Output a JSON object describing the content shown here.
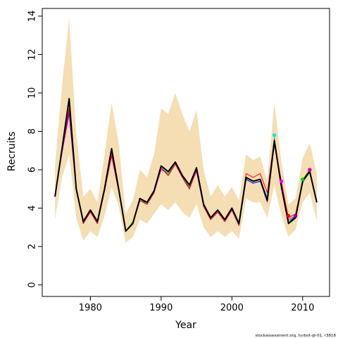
{
  "chart_data": {
    "type": "line",
    "xlabel": "Year",
    "ylabel": "Recruits",
    "xlim": [
      1973.2,
      2013.8
    ],
    "ylim": [
      -0.6,
      14.4
    ],
    "xticks": [
      1980,
      1990,
      2000,
      2010
    ],
    "yticks": [
      0,
      2,
      4,
      6,
      8,
      10,
      12,
      14
    ],
    "footnote": "stockassessment.org, turbot-qt-01, r3818",
    "band_color": "#F5DEB3",
    "x": [
      1975,
      1976,
      1977,
      1978,
      1979,
      1980,
      1981,
      1982,
      1983,
      1984,
      1985,
      1986,
      1987,
      1988,
      1989,
      1990,
      1991,
      1992,
      1993,
      1994,
      1995,
      1996,
      1997,
      1998,
      1999,
      2000,
      2001,
      2002,
      2003,
      2004,
      2005,
      2006,
      2007,
      2008,
      2009,
      2010,
      2011,
      2012
    ],
    "confidence_band": {
      "upper": [
        6.2,
        10.4,
        13.9,
        7.9,
        4.6,
        5.0,
        4.3,
        6.8,
        9.5,
        7.4,
        3.7,
        4.4,
        6.0,
        5.6,
        6.8,
        9.2,
        8.9,
        10.0,
        8.9,
        8.0,
        9.1,
        6.0,
        4.6,
        5.2,
        4.6,
        5.1,
        4.4,
        6.8,
        6.5,
        6.7,
        5.4,
        9.5,
        6.4,
        4.2,
        4.5,
        6.6,
        7.4,
        5.8
      ],
      "lower": [
        3.4,
        5.6,
        6.8,
        3.5,
        2.3,
        2.8,
        2.5,
        3.6,
        5.1,
        4.1,
        2.2,
        2.5,
        3.4,
        3.2,
        3.7,
        4.2,
        3.9,
        4.3,
        3.8,
        3.5,
        4.2,
        3.0,
        2.5,
        2.8,
        2.5,
        2.8,
        2.4,
        4.5,
        4.3,
        4.3,
        3.5,
        5.2,
        3.6,
        2.5,
        2.9,
        4.3,
        4.8,
        3.3
      ]
    },
    "series": [
      {
        "color": "#FF00FF",
        "values": [
          4.6,
          6.9,
          8.9,
          4.9,
          3.3,
          3.8,
          3.3,
          4.9,
          6.7,
          4.9,
          2.8,
          3.2,
          4.4,
          4.2,
          4.8,
          6.0,
          5.8,
          6.3,
          5.6,
          5.1,
          5.9,
          4.1,
          3.4,
          3.8,
          3.4,
          3.9,
          3.1,
          5.5,
          5.3,
          5.4,
          4.3,
          7.3,
          5.4,
          3.4,
          3.6,
          5.3,
          6.0,
          4.3
        ]
      },
      {
        "color": "#00E5EE",
        "values": [
          4.6,
          7.0,
          9.1,
          5.0,
          3.2,
          3.8,
          3.2,
          5.0,
          6.8,
          4.9,
          2.8,
          3.2,
          4.4,
          4.2,
          4.8,
          6.1,
          5.7,
          6.3,
          5.6,
          5.0,
          6.0,
          4.1,
          3.4,
          3.8,
          3.3,
          3.9,
          3.1,
          5.5,
          5.3,
          5.4,
          4.6,
          7.7,
          5.1,
          3.3,
          3.6,
          5.3,
          6.0,
          4.3
        ]
      },
      {
        "color": "#00CC00",
        "values": [
          4.6,
          7.2,
          9.5,
          5.1,
          3.3,
          3.8,
          3.3,
          5.0,
          7.0,
          5.0,
          2.8,
          3.3,
          4.5,
          4.2,
          4.8,
          6.1,
          5.8,
          6.4,
          5.6,
          5.1,
          6.0,
          4.1,
          3.4,
          3.8,
          3.4,
          4.0,
          3.1,
          5.5,
          5.3,
          5.4,
          4.4,
          7.5,
          5.2,
          3.3,
          3.6,
          5.5,
          6.0,
          4.3
        ]
      },
      {
        "color": "#0000FF",
        "values": [
          4.6,
          7.0,
          9.0,
          5.0,
          3.2,
          3.8,
          3.2,
          4.9,
          6.8,
          4.9,
          2.8,
          3.2,
          4.4,
          4.2,
          4.8,
          6.1,
          5.7,
          6.3,
          5.6,
          5.0,
          6.0,
          4.1,
          3.4,
          3.8,
          3.3,
          3.9,
          3.1,
          5.5,
          5.3,
          5.4,
          4.4,
          7.4,
          5.2,
          3.2,
          3.6,
          5.4,
          6.0,
          4.3
        ]
      },
      {
        "color": "#FF0000",
        "values": [
          4.6,
          7.0,
          9.2,
          5.0,
          3.2,
          3.8,
          3.2,
          4.9,
          6.8,
          4.9,
          2.8,
          3.2,
          4.4,
          4.2,
          4.8,
          6.1,
          5.7,
          6.3,
          5.6,
          5.0,
          6.0,
          4.1,
          3.4,
          3.8,
          3.3,
          3.9,
          3.1,
          5.8,
          5.6,
          5.8,
          4.8,
          7.6,
          5.3,
          3.5,
          3.7,
          5.4,
          6.0,
          4.3
        ]
      },
      {
        "color": "#000000",
        "values": [
          4.6,
          7.1,
          9.7,
          5.0,
          3.3,
          3.9,
          3.3,
          5.0,
          7.1,
          5.0,
          2.8,
          3.2,
          4.5,
          4.3,
          4.9,
          6.2,
          5.9,
          6.4,
          5.7,
          5.2,
          6.1,
          4.2,
          3.5,
          3.9,
          3.4,
          4.0,
          3.2,
          5.6,
          5.4,
          5.5,
          4.4,
          7.5,
          5.1,
          3.2,
          3.5,
          5.4,
          5.9,
          4.3
        ]
      }
    ],
    "endpoints": [
      {
        "color": "#FF00FF",
        "x": 2007,
        "y": 5.4
      },
      {
        "color": "#00E5EE",
        "x": 2006,
        "y": 7.8
      },
      {
        "color": "#00CC00",
        "x": 2010,
        "y": 5.5
      },
      {
        "color": "#0000FF",
        "x": 2011,
        "y": 6.0
      },
      {
        "color": "#FF0000",
        "x": 2008,
        "y": 3.6
      },
      {
        "color": "#8800AA",
        "x": 2009,
        "y": 3.6
      },
      {
        "color": "#CC00CC",
        "x": 2011,
        "y": 6.0
      }
    ]
  }
}
